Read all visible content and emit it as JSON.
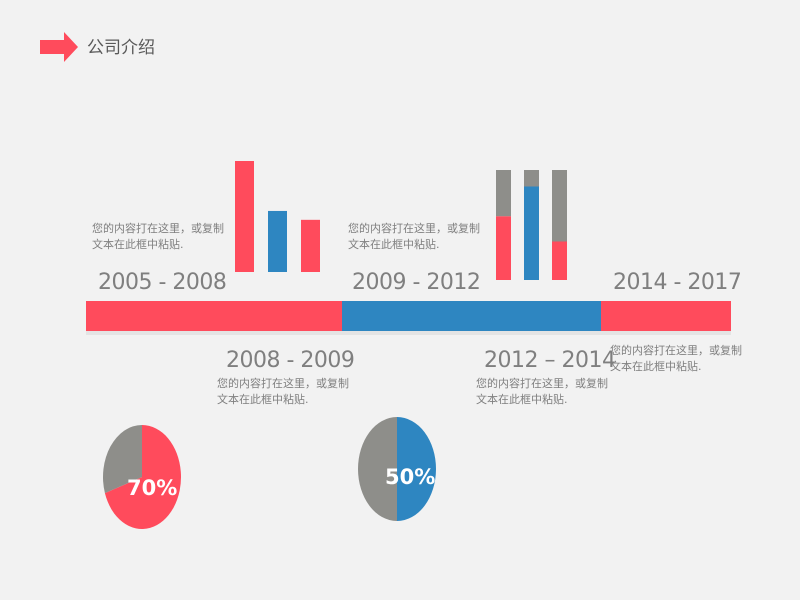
{
  "header": {
    "title": "公司介绍",
    "arrow_icon": "right-arrow-icon",
    "accent_color": "#ff4b5c"
  },
  "colors": {
    "red": "#ff4b5c",
    "blue": "#2e86c1",
    "gray": "#8e8e8a",
    "text": "#7f7f7f"
  },
  "periods": [
    {
      "label": "2005 - 2008",
      "color": "#ff4b5c"
    },
    {
      "label": "2008 - 2009",
      "color": "#ff4b5c"
    },
    {
      "label": "2009 - 2012",
      "color": "#2e86c1"
    },
    {
      "label": "2012 – 2014",
      "color": "#2e86c1"
    },
    {
      "label": "2014 - 2017",
      "color": "#ff4b5c"
    }
  ],
  "descriptions": [
    {
      "line1": "您的内容打在这里，或复制",
      "line2": "文本在此框中粘贴."
    },
    {
      "line1": "您的内容打在这里，或复制",
      "line2": "文本在此框中粘贴."
    },
    {
      "line1": "您的内容打在这里，或复制",
      "line2": "文本在此框中粘贴."
    },
    {
      "line1": "您的内容打在这里，或复制",
      "line2": "文本在此框中粘贴."
    },
    {
      "line1": "您的内容打在这里，或复制",
      "line2": "文本在此框中粘贴."
    }
  ],
  "chart_data": [
    {
      "type": "bar",
      "bars": [
        {
          "value": 1.0,
          "color": "#ff4b5c"
        },
        {
          "value": 0.55,
          "color": "#2e86c1"
        },
        {
          "value": 0.47,
          "color": "#ff4b5c"
        }
      ]
    },
    {
      "type": "bar",
      "stacked": true,
      "bars": [
        {
          "segments": [
            {
              "value": 0.58,
              "color": "#ff4b5c"
            },
            {
              "value": 0.42,
              "color": "#8e8e8a"
            }
          ]
        },
        {
          "segments": [
            {
              "value": 0.85,
              "color": "#2e86c1"
            },
            {
              "value": 0.15,
              "color": "#8e8e8a"
            }
          ]
        },
        {
          "segments": [
            {
              "value": 0.35,
              "color": "#ff4b5c"
            },
            {
              "value": 0.65,
              "color": "#8e8e8a"
            }
          ]
        }
      ]
    },
    {
      "type": "pie",
      "label": "70%",
      "slices": [
        {
          "value": 70,
          "color": "#ff4b5c"
        },
        {
          "value": 30,
          "color": "#8e8e8a"
        }
      ]
    },
    {
      "type": "pie",
      "label": "50%",
      "slices": [
        {
          "value": 50,
          "color": "#2e86c1"
        },
        {
          "value": 50,
          "color": "#8e8e8a"
        }
      ]
    }
  ]
}
